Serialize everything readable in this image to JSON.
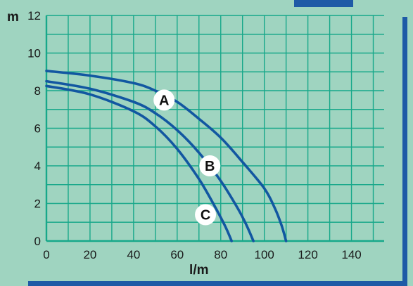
{
  "colors": {
    "background": "#9fd4c0",
    "grid": "#17a88a",
    "curve": "#1257a1",
    "frame": "#1e5aa6",
    "marker_fill": "#ffffff",
    "text": "#1a1a1a"
  },
  "chart_data": {
    "type": "line",
    "xlabel": "l/m",
    "ylabel": "m",
    "xlim": [
      0,
      155
    ],
    "ylim": [
      0,
      12
    ],
    "xticks": [
      0,
      20,
      40,
      60,
      80,
      100,
      120,
      140
    ],
    "yticks": [
      0,
      2,
      4,
      6,
      8,
      10,
      12
    ],
    "grid": true,
    "legend": "labels placed on curves",
    "series": [
      {
        "name": "A",
        "label_at": [
          54,
          7.5
        ],
        "points": [
          [
            0,
            9.05
          ],
          [
            20,
            8.8
          ],
          [
            40,
            8.4
          ],
          [
            50,
            8.0
          ],
          [
            60,
            7.4
          ],
          [
            70,
            6.5
          ],
          [
            80,
            5.5
          ],
          [
            90,
            4.2
          ],
          [
            100,
            2.8
          ],
          [
            105,
            1.7
          ],
          [
            108,
            0.8
          ],
          [
            110,
            0
          ]
        ]
      },
      {
        "name": "B",
        "label_at": [
          75,
          4.0
        ],
        "points": [
          [
            0,
            8.5
          ],
          [
            20,
            8.1
          ],
          [
            40,
            7.4
          ],
          [
            50,
            6.8
          ],
          [
            60,
            5.9
          ],
          [
            70,
            4.7
          ],
          [
            80,
            3.2
          ],
          [
            88,
            1.7
          ],
          [
            92,
            0.8
          ],
          [
            95,
            0
          ]
        ]
      },
      {
        "name": "C",
        "label_at": [
          73,
          1.4
        ],
        "points": [
          [
            0,
            8.25
          ],
          [
            20,
            7.8
          ],
          [
            40,
            6.9
          ],
          [
            50,
            6.1
          ],
          [
            60,
            4.9
          ],
          [
            70,
            3.3
          ],
          [
            77,
            1.9
          ],
          [
            82,
            0.8
          ],
          [
            85,
            0
          ]
        ]
      }
    ]
  }
}
